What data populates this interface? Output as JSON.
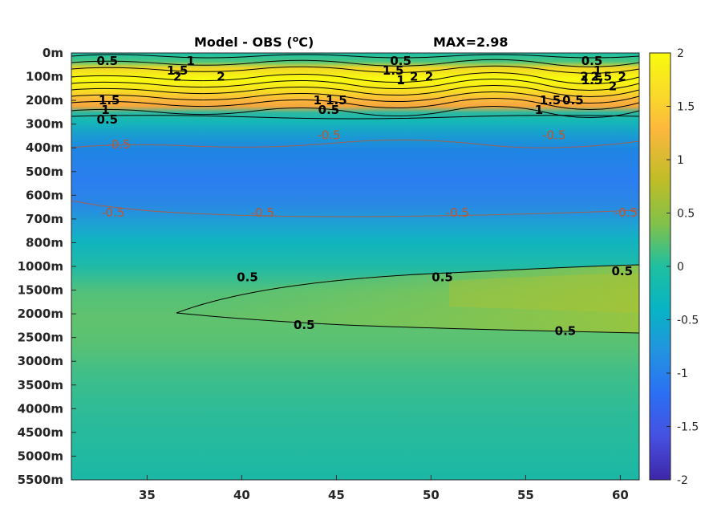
{
  "chart_data": {
    "type": "heatmap",
    "title": "Model - OBS (",
    "title_unit_sup": "o",
    "title_unit_end": "C)",
    "max_label": "MAX=2.98",
    "x_ticks": [
      35,
      40,
      45,
      50,
      55,
      60
    ],
    "xlim": [
      31,
      61
    ],
    "y_ticks": [
      "0m",
      "100m",
      "200m",
      "300m",
      "400m",
      "500m",
      "600m",
      "700m",
      "800m",
      "1000m",
      "1500m",
      "2000m",
      "2500m",
      "3000m",
      "3500m",
      "4000m",
      "4500m",
      "5000m",
      "5500m"
    ],
    "colorbar": {
      "ticks": [
        "2",
        "1.5",
        "1",
        "0.5",
        "0",
        "-0.5",
        "-1",
        "-1.5",
        "-2"
      ],
      "clim": [
        -2,
        2
      ],
      "colormap": "parula"
    },
    "field_by_depth_level": [
      {
        "depth": "0m",
        "value": 0.3
      },
      {
        "depth": "100m",
        "value": 2.6
      },
      {
        "depth": "200m",
        "value": 1.5
      },
      {
        "depth": "300m",
        "value": 0.2
      },
      {
        "depth": "400m",
        "value": -0.6
      },
      {
        "depth": "500m",
        "value": -0.8
      },
      {
        "depth": "600m",
        "value": -0.75
      },
      {
        "depth": "700m",
        "value": -0.45
      },
      {
        "depth": "800m",
        "value": -0.1
      },
      {
        "depth": "1000m",
        "value": 0.2
      },
      {
        "depth": "1500m",
        "value": 0.6
      },
      {
        "depth": "2000m",
        "value": 0.5
      },
      {
        "depth": "2500m",
        "value": 0.4
      },
      {
        "depth": "3000m",
        "value": 0.35
      },
      {
        "depth": "3500m",
        "value": 0.3
      },
      {
        "depth": "4000m",
        "value": 0.25
      },
      {
        "depth": "4500m",
        "value": 0.2
      },
      {
        "depth": "5000m",
        "value": 0.15
      },
      {
        "depth": "5500m",
        "value": 0.1
      }
    ],
    "contour_labels": [
      {
        "text": "0.5",
        "x": 32.9,
        "depth": "0m",
        "style": "black"
      },
      {
        "text": "1",
        "x": 37.3,
        "depth": "0m",
        "style": "black"
      },
      {
        "text": "1.5",
        "x": 36.6,
        "depth": "0m",
        "style": "black"
      },
      {
        "text": "2",
        "x": 38.9,
        "depth": "100m",
        "style": "black"
      },
      {
        "text": "2",
        "x": 36.6,
        "depth": "100m",
        "style": "black"
      },
      {
        "text": "1.5",
        "x": 33.0,
        "depth": "200m",
        "style": "black"
      },
      {
        "text": "1",
        "x": 32.8,
        "depth": "200m",
        "style": "black"
      },
      {
        "text": "0.5",
        "x": 32.9,
        "depth": "200m",
        "style": "black"
      },
      {
        "text": "0.5",
        "x": 48.4,
        "depth": "0m",
        "style": "black"
      },
      {
        "text": "1.5",
        "x": 48.0,
        "depth": "0m",
        "style": "black"
      },
      {
        "text": "1",
        "x": 48.4,
        "depth": "0m",
        "style": "black"
      },
      {
        "text": "2",
        "x": 49.9,
        "depth": "100m",
        "style": "black"
      },
      {
        "text": "2",
        "x": 49.1,
        "depth": "100m",
        "style": "black"
      },
      {
        "text": "1",
        "x": 44.0,
        "depth": "200m",
        "style": "black"
      },
      {
        "text": "1.5",
        "x": 45.0,
        "depth": "200m",
        "style": "black"
      },
      {
        "text": "0.5",
        "x": 44.6,
        "depth": "200m",
        "style": "black"
      },
      {
        "text": "0.5",
        "x": 58.5,
        "depth": "0m",
        "style": "black"
      },
      {
        "text": "1",
        "x": 58.8,
        "depth": "0m",
        "style": "black"
      },
      {
        "text": "1.5",
        "x": 58.5,
        "depth": "0m",
        "style": "black"
      },
      {
        "text": "2.5",
        "x": 59.0,
        "depth": "100m",
        "style": "black"
      },
      {
        "text": "2",
        "x": 58.1,
        "depth": "100m",
        "style": "black"
      },
      {
        "text": "2",
        "x": 60.1,
        "depth": "100m",
        "style": "black"
      },
      {
        "text": "2",
        "x": 59.6,
        "depth": "100m",
        "style": "black"
      },
      {
        "text": "1.5",
        "x": 56.3,
        "depth": "200m",
        "style": "black"
      },
      {
        "text": "1",
        "x": 55.7,
        "depth": "200m",
        "style": "black"
      },
      {
        "text": "0.5",
        "x": 57.5,
        "depth": "200m",
        "style": "black"
      },
      {
        "text": "-0.5",
        "x": 33.5,
        "depth": "400m",
        "style": "red"
      },
      {
        "text": "-0.5",
        "x": 44.6,
        "depth": "300m",
        "style": "red"
      },
      {
        "text": "-0.5",
        "x": 56.5,
        "depth": "300m",
        "style": "red"
      },
      {
        "text": "-0.5",
        "x": 33.2,
        "depth": "700m",
        "style": "red"
      },
      {
        "text": "-0.5",
        "x": 41.1,
        "depth": "700m",
        "style": "red"
      },
      {
        "text": "-0.5",
        "x": 51.4,
        "depth": "700m",
        "style": "red"
      },
      {
        "text": "-0.5",
        "x": 60.3,
        "depth": "700m",
        "style": "red"
      },
      {
        "text": "0.5",
        "x": 40.3,
        "depth": "1500m",
        "style": "black"
      },
      {
        "text": "0.5",
        "x": 50.6,
        "depth": "1500m",
        "style": "black"
      },
      {
        "text": "0.5",
        "x": 60.1,
        "depth": "1000m",
        "style": "black"
      },
      {
        "text": "0.5",
        "x": 43.3,
        "depth": "2000m",
        "style": "black"
      },
      {
        "text": "0.5",
        "x": 57.1,
        "depth": "2500m",
        "style": "black"
      }
    ]
  }
}
